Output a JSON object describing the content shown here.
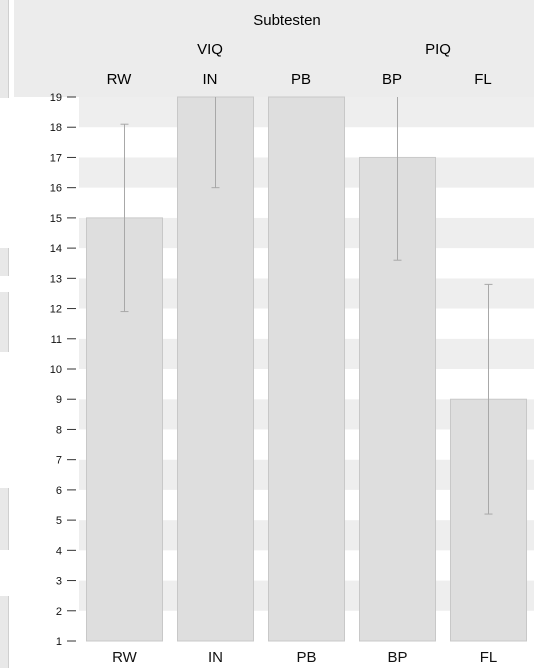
{
  "header": {
    "group_title": "Subtesten",
    "groups": [
      {
        "label": "VIQ",
        "categories": [
          "RW",
          "IN",
          "PB"
        ]
      },
      {
        "label": "PIQ",
        "categories": [
          "BP",
          "FL"
        ]
      }
    ]
  },
  "colors": {
    "header_bg": "#ececec",
    "band_dark": "#eeeeee",
    "band_light": "#ffffff",
    "bar_fill": "#dedede",
    "bar_stroke": "#c8c8c8",
    "error_bar": "#a8a8a8",
    "axis_text": "#111111"
  },
  "chart_data": {
    "type": "bar",
    "title": "Subtesten",
    "categories": [
      "RW",
      "IN",
      "PB",
      "BP",
      "FL"
    ],
    "values": [
      15,
      19,
      19,
      17,
      9
    ],
    "error_bars": [
      {
        "category": "RW",
        "low": 11.9,
        "high": 18.1
      },
      {
        "category": "IN",
        "low": 16,
        "high": 19
      },
      {
        "category": "PB",
        "low": null,
        "high": null
      },
      {
        "category": "BP",
        "low": 13.6,
        "high": 19
      },
      {
        "category": "FL",
        "low": 5.2,
        "high": 12.8
      }
    ],
    "ylim": [
      1,
      19
    ],
    "yticks": [
      1,
      2,
      3,
      4,
      5,
      6,
      7,
      8,
      9,
      10,
      11,
      12,
      13,
      14,
      15,
      16,
      17,
      18,
      19
    ],
    "grid": "alternating horizontal bands",
    "xlabel": "",
    "ylabel": ""
  }
}
